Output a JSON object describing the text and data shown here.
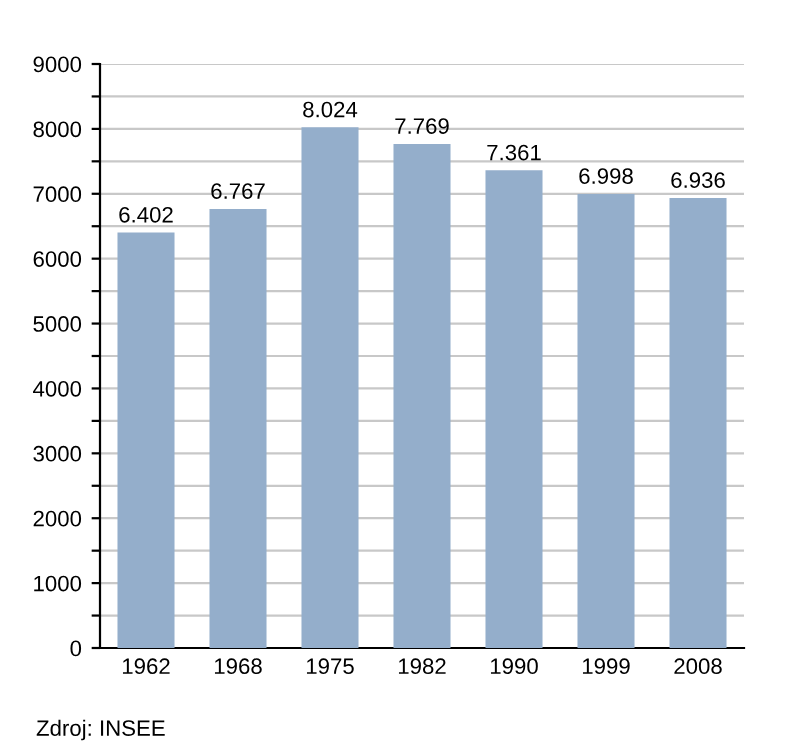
{
  "chart_data": {
    "type": "bar",
    "categories": [
      "1962",
      "1968",
      "1975",
      "1982",
      "1990",
      "1999",
      "2008"
    ],
    "values": [
      6402,
      6767,
      8024,
      7769,
      7361,
      6998,
      6936
    ],
    "value_labels": [
      "6.402",
      "6.767",
      "8.024",
      "7.769",
      "7.361",
      "6.998",
      "6.936"
    ],
    "color": "#94aecb",
    "ylim": [
      0,
      9000
    ],
    "yticks": [
      0,
      {
        "value": 500,
        "label": null
      },
      1000,
      {
        "value": 1500,
        "label": null
      },
      2000,
      {
        "value": 2500,
        "label": null
      },
      3000,
      {
        "value": 3500,
        "label": null
      },
      4000,
      {
        "value": 4500,
        "label": null
      },
      5000,
      {
        "value": 5500,
        "label": null
      },
      6000,
      {
        "value": 6500,
        "label": null
      },
      7000,
      {
        "value": 7500,
        "label": null
      },
      8000,
      {
        "value": 8500,
        "label": null
      },
      9000
    ],
    "grid": "y",
    "annotations": [
      "Zdroj: INSEE"
    ]
  }
}
